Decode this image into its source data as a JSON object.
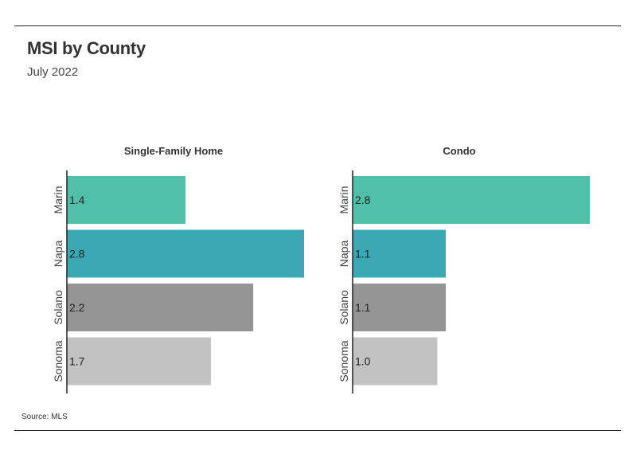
{
  "title": "MSI by County",
  "subtitle": "July 2022",
  "source": "Source:  MLS",
  "colors": {
    "Marin": "#52bfaa",
    "Napa": "#3aa8b5",
    "Solano": "#959595",
    "Sonoma": "#c2c2c2",
    "axis": "#222222"
  },
  "chart_data": [
    {
      "type": "bar",
      "orientation": "horizontal",
      "title": "Single-Family Home",
      "categories": [
        "Marin",
        "Napa",
        "Solano",
        "Sonoma"
      ],
      "values": [
        1.4,
        2.8,
        2.2,
        1.7
      ],
      "value_labels": [
        "1.4",
        "2.8",
        "2.2",
        "1.7"
      ],
      "xlim": [
        0,
        2.8
      ],
      "grid": false
    },
    {
      "type": "bar",
      "orientation": "horizontal",
      "title": "Condo",
      "categories": [
        "Marin",
        "Napa",
        "Solano",
        "Sonoma"
      ],
      "values": [
        2.8,
        1.1,
        1.1,
        1.0
      ],
      "value_labels": [
        "2.8",
        "1.1",
        "1.1",
        "1.0"
      ],
      "xlim": [
        0,
        2.8
      ],
      "grid": false
    }
  ]
}
